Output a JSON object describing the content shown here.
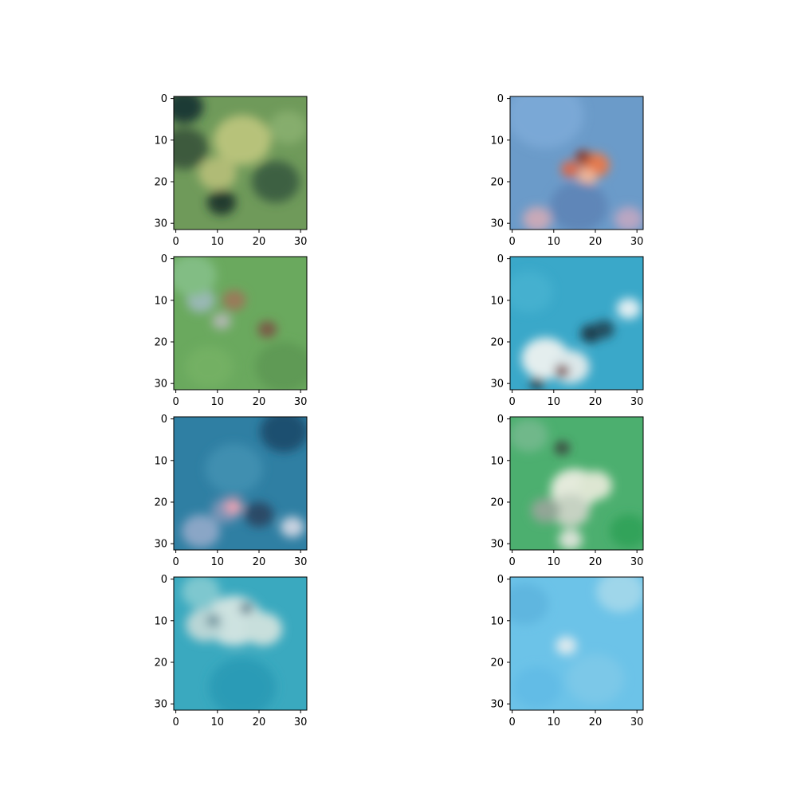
{
  "chart_data": {
    "type": "heatmap",
    "description_kind": "image-grid",
    "rows": 4,
    "cols": 2,
    "xlim": [
      -0.5,
      31.5
    ],
    "ylim": [
      31.5,
      -0.5
    ],
    "xticks": [
      0,
      10,
      20,
      30
    ],
    "yticks": [
      0,
      10,
      20,
      30
    ],
    "grid": false,
    "panels": [
      {
        "xtick_labels": [
          "0",
          "10",
          "20",
          "30"
        ],
        "ytick_labels": [
          "0",
          "10",
          "20",
          "30"
        ],
        "colors": {
          "base": "#6f9a5a",
          "dark": "#2f4a33",
          "light": "#b8c279",
          "accent": "#4f7a45"
        },
        "blobs": [
          {
            "cx": 2,
            "cy": 2,
            "r": 4,
            "color": "#1f3a34"
          },
          {
            "cx": 2,
            "cy": 12,
            "r": 5,
            "color": "#3c5a3c"
          },
          {
            "cx": 16,
            "cy": 10,
            "r": 6,
            "color": "#b7c27a"
          },
          {
            "cx": 10,
            "cy": 18,
            "r": 4,
            "color": "#b0bb76"
          },
          {
            "cx": 24,
            "cy": 20,
            "r": 5,
            "color": "#3d6043"
          },
          {
            "cx": 11,
            "cy": 25,
            "r": 3,
            "color": "#243a2e"
          },
          {
            "cx": 27,
            "cy": 7,
            "r": 4,
            "color": "#86ad6d"
          }
        ]
      },
      {
        "xtick_labels": [
          "0",
          "10",
          "20",
          "30"
        ],
        "ytick_labels": [
          "0",
          "10",
          "20",
          "30"
        ],
        "colors": {
          "base": "#6b9bc9",
          "dark": "#4f77a6",
          "light": "#a6c3e0",
          "accent": "#e07b55"
        },
        "blobs": [
          {
            "cx": 8,
            "cy": 4,
            "r": 8,
            "color": "#7aa8d6"
          },
          {
            "cx": 20,
            "cy": 16,
            "r": 3,
            "color": "#e37a4f"
          },
          {
            "cx": 14,
            "cy": 17,
            "r": 2,
            "color": "#d86a4f"
          },
          {
            "cx": 18,
            "cy": 19,
            "r": 2,
            "color": "#f0b89a"
          },
          {
            "cx": 17,
            "cy": 14,
            "r": 1.6,
            "color": "#8a3a2d"
          },
          {
            "cx": 6,
            "cy": 29,
            "r": 3,
            "color": "#c8a9b8"
          },
          {
            "cx": 28,
            "cy": 29,
            "r": 3,
            "color": "#b9a6c2"
          },
          {
            "cx": 16,
            "cy": 26,
            "r": 6,
            "color": "#5f86b8"
          }
        ]
      },
      {
        "xtick_labels": [
          "0",
          "10",
          "20",
          "30"
        ],
        "ytick_labels": [
          "0",
          "10",
          "20",
          "30"
        ],
        "colors": {
          "base": "#6aa95e",
          "dark": "#4a7f47",
          "light": "#8cc47b",
          "accent": "#8a6a4a"
        },
        "blobs": [
          {
            "cx": 6,
            "cy": 10,
            "r": 3,
            "color": "#9ab8b5"
          },
          {
            "cx": 14,
            "cy": 10,
            "r": 2.5,
            "color": "#9a7a5a"
          },
          {
            "cx": 11,
            "cy": 15,
            "r": 2,
            "color": "#b0b7b0"
          },
          {
            "cx": 22,
            "cy": 17,
            "r": 2,
            "color": "#7a5a46"
          },
          {
            "cx": 4,
            "cy": 4,
            "r": 5,
            "color": "#82bd84"
          },
          {
            "cx": 26,
            "cy": 26,
            "r": 6,
            "color": "#5e9a55"
          },
          {
            "cx": 8,
            "cy": 26,
            "r": 5,
            "color": "#73b064"
          }
        ]
      },
      {
        "xtick_labels": [
          "0",
          "10",
          "20",
          "30"
        ],
        "ytick_labels": [
          "0",
          "10",
          "20",
          "30"
        ],
        "colors": {
          "base": "#3aa8c9",
          "dark": "#1f7f9c",
          "light": "#e8f2f2",
          "accent": "#1f4a5a"
        },
        "blobs": [
          {
            "cx": 28,
            "cy": 12,
            "r": 2.5,
            "color": "#e0eef2"
          },
          {
            "cx": 19,
            "cy": 18,
            "r": 2.2,
            "color": "#1f3a4a"
          },
          {
            "cx": 22,
            "cy": 17,
            "r": 2.2,
            "color": "#244d5e"
          },
          {
            "cx": 8,
            "cy": 24,
            "r": 5,
            "color": "#e4eeee"
          },
          {
            "cx": 14,
            "cy": 26,
            "r": 4,
            "color": "#dce8ea"
          },
          {
            "cx": 12,
            "cy": 27,
            "r": 1.5,
            "color": "#7a3a3a"
          },
          {
            "cx": 6,
            "cy": 30,
            "r": 1.5,
            "color": "#1f3a4a"
          },
          {
            "cx": 4,
            "cy": 8,
            "r": 5,
            "color": "#44b0cf"
          }
        ]
      },
      {
        "xtick_labels": [
          "0",
          "10",
          "20",
          "30"
        ],
        "ytick_labels": [
          "0",
          "10",
          "20",
          "30"
        ],
        "colors": {
          "base": "#2f7fa3",
          "dark": "#1f5a7a",
          "light": "#8aa8c8",
          "accent": "#e0a0b0"
        },
        "blobs": [
          {
            "cx": 26,
            "cy": 3,
            "r": 5,
            "color": "#1d4f70"
          },
          {
            "cx": 14,
            "cy": 12,
            "r": 6,
            "color": "#3f8fb0"
          },
          {
            "cx": 12,
            "cy": 22,
            "r": 3,
            "color": "#7f94b6"
          },
          {
            "cx": 14,
            "cy": 21,
            "r": 1.8,
            "color": "#e8a3b3"
          },
          {
            "cx": 20,
            "cy": 23,
            "r": 3,
            "color": "#2a4a66"
          },
          {
            "cx": 28,
            "cy": 26,
            "r": 2.5,
            "color": "#c8d2e0"
          },
          {
            "cx": 6,
            "cy": 27,
            "r": 4,
            "color": "#8aa6c6"
          }
        ]
      },
      {
        "xtick_labels": [
          "0",
          "10",
          "20",
          "30"
        ],
        "ytick_labels": [
          "0",
          "10",
          "20",
          "30"
        ],
        "colors": {
          "base": "#4caf6f",
          "dark": "#2f8a5a",
          "light": "#e6eedc",
          "accent": "#7a8a7a"
        },
        "blobs": [
          {
            "cx": 12,
            "cy": 7,
            "r": 1.6,
            "color": "#3a4a40"
          },
          {
            "cx": 15,
            "cy": 17,
            "r": 5,
            "color": "#e4eadb"
          },
          {
            "cx": 20,
            "cy": 16,
            "r": 3.5,
            "color": "#dde6d2"
          },
          {
            "cx": 14,
            "cy": 22,
            "r": 4,
            "color": "#c6d2c2"
          },
          {
            "cx": 8,
            "cy": 22,
            "r": 3,
            "color": "#92a696"
          },
          {
            "cx": 14,
            "cy": 29,
            "r": 2.5,
            "color": "#d8e2d6"
          },
          {
            "cx": 4,
            "cy": 4,
            "r": 4,
            "color": "#6fb88a"
          },
          {
            "cx": 28,
            "cy": 27,
            "r": 4,
            "color": "#33a35a"
          }
        ]
      },
      {
        "xtick_labels": [
          "0",
          "10",
          "20",
          "30"
        ],
        "ytick_labels": [
          "0",
          "10",
          "20",
          "30"
        ],
        "colors": {
          "base": "#3aa9bf",
          "dark": "#1f8aa5",
          "light": "#cfe3e2",
          "accent": "#5e8a9a"
        },
        "blobs": [
          {
            "cx": 14,
            "cy": 10,
            "r": 6,
            "color": "#cde2e0"
          },
          {
            "cx": 7,
            "cy": 11,
            "r": 4,
            "color": "#b9d6d6"
          },
          {
            "cx": 21,
            "cy": 12,
            "r": 4,
            "color": "#c8dfdc"
          },
          {
            "cx": 17,
            "cy": 7,
            "r": 1.4,
            "color": "#5a7f8e"
          },
          {
            "cx": 9,
            "cy": 10,
            "r": 1.4,
            "color": "#6d8f9a"
          },
          {
            "cx": 6,
            "cy": 3,
            "r": 4,
            "color": "#7ec7cf"
          },
          {
            "cx": 16,
            "cy": 26,
            "r": 7,
            "color": "#2b9bb6"
          }
        ]
      },
      {
        "xtick_labels": [
          "0",
          "10",
          "20",
          "30"
        ],
        "ytick_labels": [
          "0",
          "10",
          "20",
          "30"
        ],
        "colors": {
          "base": "#6cc3e8",
          "dark": "#55b0dd",
          "light": "#d7e9f0",
          "accent": "#9bd3ec"
        },
        "blobs": [
          {
            "cx": 13,
            "cy": 16,
            "r": 2.2,
            "color": "#dbe9ee"
          },
          {
            "cx": 26,
            "cy": 3,
            "r": 5,
            "color": "#9fd6ea"
          },
          {
            "cx": 3,
            "cy": 6,
            "r": 5,
            "color": "#5fb6df"
          },
          {
            "cx": 20,
            "cy": 24,
            "r": 6,
            "color": "#7cc8e8"
          },
          {
            "cx": 6,
            "cy": 26,
            "r": 5,
            "color": "#62bce6"
          }
        ]
      }
    ]
  }
}
